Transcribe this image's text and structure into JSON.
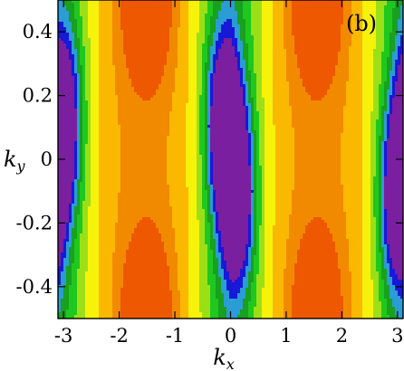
{
  "chart_data": {
    "type": "heatmap",
    "panel_label": "(b)",
    "xlabel": "k",
    "xlabel_sub": "x",
    "ylabel": "k",
    "ylabel_sub": "y",
    "xlim": [
      -3.1,
      3.1
    ],
    "ylim": [
      -0.5,
      0.5
    ],
    "x_ticks": [
      -3,
      -2,
      -1,
      0,
      1,
      2,
      3
    ],
    "x_tick_labels": [
      "-3",
      "-2",
      "-1",
      "0",
      "1",
      "2",
      "3"
    ],
    "y_ticks": [
      -0.4,
      -0.2,
      0,
      0.2,
      0.4
    ],
    "y_tick_labels": [
      "-0.4",
      "-0.2",
      "0",
      "0.2",
      "0.4"
    ],
    "colormap": [
      "#7a1fa0",
      "#1818d8",
      "#2a9cd6",
      "#19a01e",
      "#1ec81e",
      "#9be017",
      "#f7f20a",
      "#fbb800",
      "#f28a00",
      "#ee5800"
    ],
    "color_range": [
      0,
      1
    ],
    "minima": [
      {
        "kx": -3.0,
        "ky": 0.12
      },
      {
        "kx": -0.12,
        "ky": 0.12
      },
      {
        "kx": 0.12,
        "ky": -0.12
      },
      {
        "kx": 3.0,
        "ky": -0.12
      }
    ],
    "maxima": [
      {
        "kx": -1.5,
        "ky": 0.5
      },
      {
        "kx": -1.5,
        "ky": -0.5
      },
      {
        "kx": 1.55,
        "ky": 0.5
      },
      {
        "kx": 1.55,
        "ky": -0.5
      }
    ]
  }
}
